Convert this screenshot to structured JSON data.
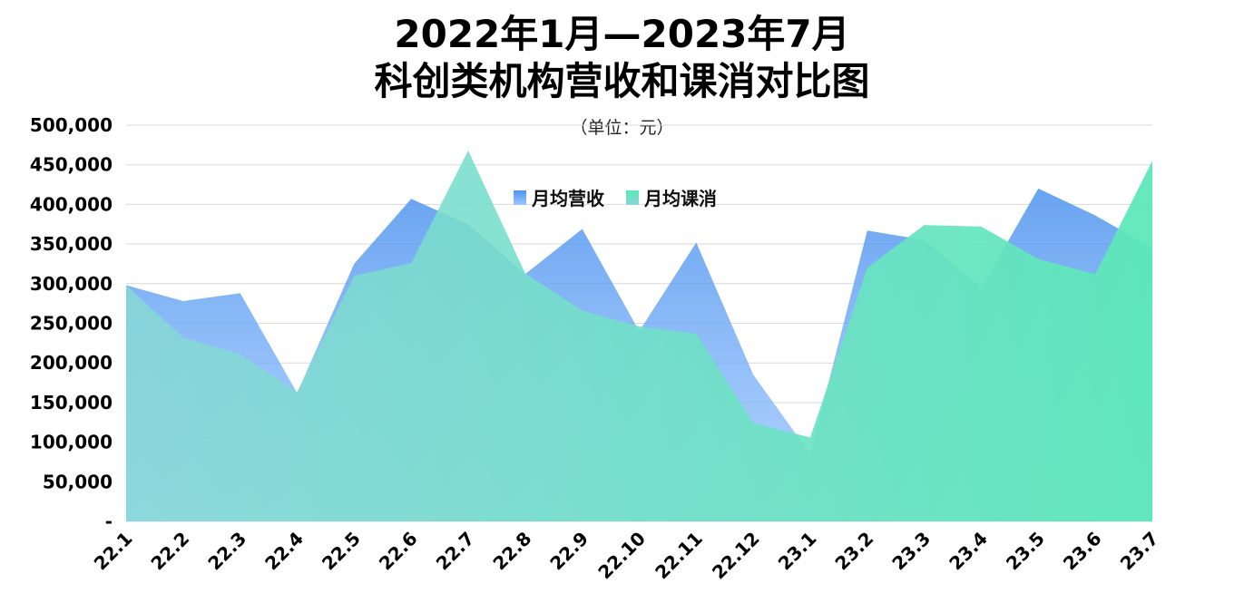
{
  "chart_data": {
    "type": "area",
    "title_line1": "2022年1月—2023年7月",
    "title_line2": "科创类机构营收和课消对比图",
    "subtitle": "（单位：元）",
    "categories": [
      "22.1",
      "22.2",
      "22.3",
      "22.4",
      "22.5",
      "22.6",
      "22.7",
      "22.8",
      "22.9",
      "22.10",
      "22.11",
      "22.12",
      "23.1",
      "23.2",
      "23.3",
      "23.4",
      "23.5",
      "23.6",
      "23.7"
    ],
    "series": [
      {
        "name": "月均营收",
        "color_top": "#4f94ee",
        "color_bottom": "#9cc7ff",
        "values": [
          298000,
          278000,
          288000,
          162000,
          325000,
          407000,
          375000,
          312000,
          369000,
          240000,
          352000,
          185000,
          85000,
          367000,
          355000,
          295000,
          420000,
          386000,
          345000
        ]
      },
      {
        "name": "月均课消",
        "color_top": "#5de8b8",
        "color_bottom": "#86d8d6",
        "values": [
          298000,
          232000,
          211000,
          163000,
          310000,
          326000,
          468000,
          313000,
          266000,
          246000,
          237000,
          124000,
          106000,
          320000,
          374000,
          372000,
          331000,
          312000,
          455000
        ]
      }
    ],
    "ylim": [
      0,
      500000
    ],
    "yticks": [
      "-",
      "50,000",
      "100,000",
      "150,000",
      "200,000",
      "250,000",
      "300,000",
      "350,000",
      "400,000",
      "450,000",
      "500,000"
    ],
    "grid": true,
    "legend_position": "top-center"
  }
}
